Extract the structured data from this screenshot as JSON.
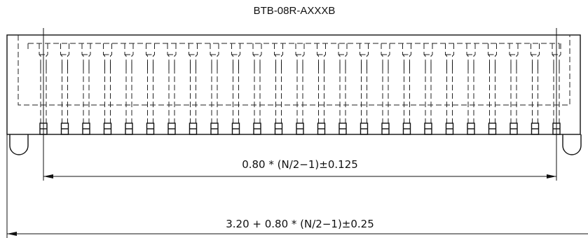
{
  "title": "BTB-08R-AXXXB",
  "dimensions": {
    "pitch_span": "0.80 * (N/2−1)±0.125",
    "overall_length": "3.20 + 0.80 * (N/2−1)±0.25"
  },
  "drawing": {
    "pin_count_shown": 25,
    "line_color": "#111111",
    "background": "#ffffff"
  }
}
